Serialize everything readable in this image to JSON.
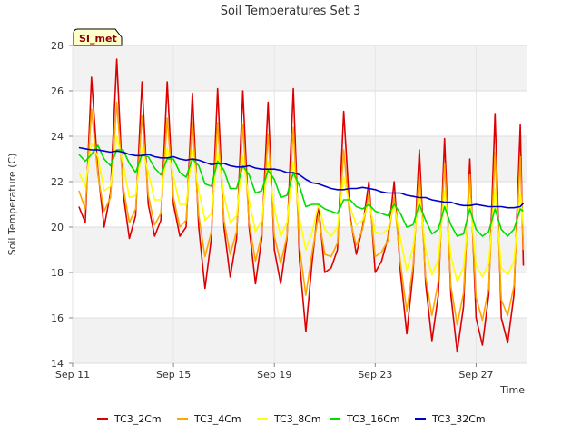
{
  "chart_data": {
    "type": "line",
    "title": "Soil Temperatures Set 3",
    "xlabel": "Time",
    "ylabel": "Soil Temperature (C)",
    "badge": "SI_met",
    "ylim": [
      14,
      28
    ],
    "yticks": [
      14,
      16,
      18,
      20,
      22,
      24,
      26,
      28
    ],
    "xlim": [
      "2023-09-11",
      "2023-09-29"
    ],
    "xticks": [
      {
        "date": "2023-09-11",
        "label": "Sep 11"
      },
      {
        "date": "2023-09-15",
        "label": "Sep 15"
      },
      {
        "date": "2023-09-19",
        "label": "Sep 19"
      },
      {
        "date": "2023-09-23",
        "label": "Sep 23"
      },
      {
        "date": "2023-09-27",
        "label": "Sep 27"
      }
    ],
    "grid": "horizontal bands",
    "legend_position": "bottom",
    "x": [
      "2023-09-11 06:00",
      "2023-09-11 12:00",
      "2023-09-11 18:00",
      "2023-09-12 00:00",
      "2023-09-12 06:00",
      "2023-09-12 12:00",
      "2023-09-12 18:00",
      "2023-09-13 00:00",
      "2023-09-13 06:00",
      "2023-09-13 12:00",
      "2023-09-13 18:00",
      "2023-09-14 00:00",
      "2023-09-14 06:00",
      "2023-09-14 12:00",
      "2023-09-14 18:00",
      "2023-09-15 00:00",
      "2023-09-15 06:00",
      "2023-09-15 12:00",
      "2023-09-15 18:00",
      "2023-09-16 00:00",
      "2023-09-16 06:00",
      "2023-09-16 12:00",
      "2023-09-16 18:00",
      "2023-09-17 00:00",
      "2023-09-17 06:00",
      "2023-09-17 12:00",
      "2023-09-17 18:00",
      "2023-09-18 00:00",
      "2023-09-18 06:00",
      "2023-09-18 12:00",
      "2023-09-18 18:00",
      "2023-09-19 00:00",
      "2023-09-19 06:00",
      "2023-09-19 12:00",
      "2023-09-19 18:00",
      "2023-09-20 00:00",
      "2023-09-20 06:00",
      "2023-09-20 12:00",
      "2023-09-20 18:00",
      "2023-09-21 00:00",
      "2023-09-21 06:00",
      "2023-09-21 12:00",
      "2023-09-21 18:00",
      "2023-09-22 00:00",
      "2023-09-22 06:00",
      "2023-09-22 12:00",
      "2023-09-22 18:00",
      "2023-09-23 00:00",
      "2023-09-23 06:00",
      "2023-09-23 12:00",
      "2023-09-23 18:00",
      "2023-09-24 00:00",
      "2023-09-24 06:00",
      "2023-09-24 12:00",
      "2023-09-24 18:00",
      "2023-09-25 00:00",
      "2023-09-25 06:00",
      "2023-09-25 12:00",
      "2023-09-25 18:00",
      "2023-09-26 00:00",
      "2023-09-26 06:00",
      "2023-09-26 12:00",
      "2023-09-26 18:00",
      "2023-09-27 00:00",
      "2023-09-27 06:00",
      "2023-09-27 12:00",
      "2023-09-27 18:00",
      "2023-09-28 00:00",
      "2023-09-28 06:00",
      "2023-09-28 12:00",
      "2023-09-28 18:00",
      "2023-09-28 21:00"
    ],
    "series": [
      {
        "name": "TC3_2Cm",
        "color": "#dd0000",
        "values": [
          20.9,
          20.2,
          26.6,
          22.5,
          20.0,
          21.5,
          27.4,
          21.5,
          19.5,
          20.5,
          26.4,
          21.0,
          19.6,
          20.3,
          26.4,
          21.0,
          19.6,
          20.0,
          25.9,
          20.0,
          17.3,
          19.5,
          26.1,
          20.0,
          17.8,
          19.5,
          26.0,
          20.0,
          17.5,
          19.5,
          25.5,
          19.0,
          17.5,
          19.5,
          26.1,
          18.5,
          15.4,
          18.5,
          21.0,
          18.0,
          18.2,
          19.0,
          25.1,
          20.5,
          18.8,
          20.0,
          22.0,
          18.0,
          18.5,
          19.5,
          22.0,
          18.0,
          15.3,
          18.0,
          23.4,
          17.5,
          15.0,
          17.0,
          23.9,
          17.0,
          14.5,
          16.5,
          23.0,
          16.0,
          14.8,
          17.0,
          25.0,
          16.0,
          14.9,
          17.0,
          24.5,
          18.3
        ]
      },
      {
        "name": "TC3_4Cm",
        "color": "#ffa500",
        "values": [
          21.6,
          20.8,
          25.2,
          22.3,
          20.7,
          21.3,
          25.5,
          21.8,
          20.2,
          20.8,
          24.9,
          21.4,
          20.1,
          20.6,
          24.8,
          21.3,
          20.0,
          20.3,
          24.6,
          20.5,
          18.7,
          19.8,
          24.6,
          20.3,
          18.8,
          19.8,
          24.5,
          20.2,
          18.5,
          19.7,
          24.1,
          19.6,
          18.4,
          19.6,
          24.4,
          19.1,
          17.0,
          18.9,
          20.5,
          18.8,
          18.7,
          19.3,
          23.4,
          20.3,
          19.2,
          19.9,
          21.5,
          18.7,
          18.9,
          19.4,
          21.3,
          18.4,
          16.3,
          18.3,
          22.4,
          17.8,
          16.1,
          17.6,
          22.8,
          17.4,
          15.7,
          17.1,
          22.3,
          16.9,
          15.9,
          17.3,
          23.3,
          16.8,
          16.1,
          17.4,
          23.1,
          19.0
        ]
      },
      {
        "name": "TC3_8Cm",
        "color": "#ffff00",
        "values": [
          22.4,
          21.8,
          23.7,
          23.1,
          21.6,
          21.8,
          24.0,
          22.8,
          21.3,
          21.4,
          23.5,
          22.4,
          21.2,
          21.2,
          23.5,
          22.2,
          21.0,
          21.0,
          23.4,
          21.6,
          20.3,
          20.6,
          23.3,
          21.4,
          20.2,
          20.5,
          23.1,
          21.2,
          19.8,
          20.3,
          22.9,
          20.8,
          19.6,
          20.2,
          22.9,
          20.4,
          19.0,
          19.8,
          21.0,
          19.9,
          19.6,
          20.0,
          22.2,
          20.9,
          20.1,
          20.3,
          21.1,
          19.8,
          19.7,
          19.9,
          21.0,
          19.5,
          18.1,
          19.1,
          21.5,
          19.0,
          17.9,
          18.6,
          21.6,
          18.7,
          17.6,
          18.2,
          21.3,
          18.3,
          17.8,
          18.4,
          21.7,
          18.2,
          17.9,
          18.5,
          21.5,
          20.1
        ]
      },
      {
        "name": "TC3_16Cm",
        "color": "#00dd00",
        "values": [
          23.2,
          22.9,
          23.2,
          23.6,
          23.0,
          22.7,
          23.4,
          23.4,
          22.8,
          22.4,
          23.2,
          23.1,
          22.6,
          22.3,
          23.0,
          23.0,
          22.4,
          22.2,
          23.0,
          22.7,
          21.9,
          21.8,
          22.9,
          22.5,
          21.7,
          21.7,
          22.7,
          22.3,
          21.5,
          21.6,
          22.5,
          22.1,
          21.3,
          21.4,
          22.4,
          21.8,
          20.9,
          21.0,
          21.0,
          20.8,
          20.7,
          20.6,
          21.2,
          21.2,
          20.9,
          20.8,
          21.0,
          20.7,
          20.6,
          20.5,
          21.0,
          20.6,
          20.0,
          20.1,
          21.0,
          20.3,
          19.7,
          19.9,
          20.9,
          20.1,
          19.6,
          19.7,
          20.8,
          19.9,
          19.6,
          19.8,
          20.8,
          19.9,
          19.6,
          19.9,
          20.8,
          20.7
        ]
      },
      {
        "name": "TC3_32Cm",
        "color": "#0000cc",
        "values": [
          23.5,
          23.45,
          23.4,
          23.4,
          23.35,
          23.3,
          23.35,
          23.3,
          23.2,
          23.15,
          23.15,
          23.2,
          23.1,
          23.05,
          23.05,
          23.1,
          23.0,
          22.95,
          23.0,
          22.95,
          22.85,
          22.75,
          22.8,
          22.8,
          22.7,
          22.65,
          22.65,
          22.7,
          22.6,
          22.55,
          22.55,
          22.55,
          22.5,
          22.4,
          22.4,
          22.3,
          22.1,
          21.95,
          21.9,
          21.8,
          21.7,
          21.65,
          21.65,
          21.7,
          21.7,
          21.75,
          21.7,
          21.65,
          21.55,
          21.5,
          21.5,
          21.5,
          21.4,
          21.35,
          21.3,
          21.3,
          21.2,
          21.15,
          21.1,
          21.1,
          21.0,
          20.95,
          20.95,
          21.0,
          20.95,
          20.9,
          20.9,
          20.9,
          20.85,
          20.85,
          20.9,
          21.05
        ]
      }
    ]
  }
}
